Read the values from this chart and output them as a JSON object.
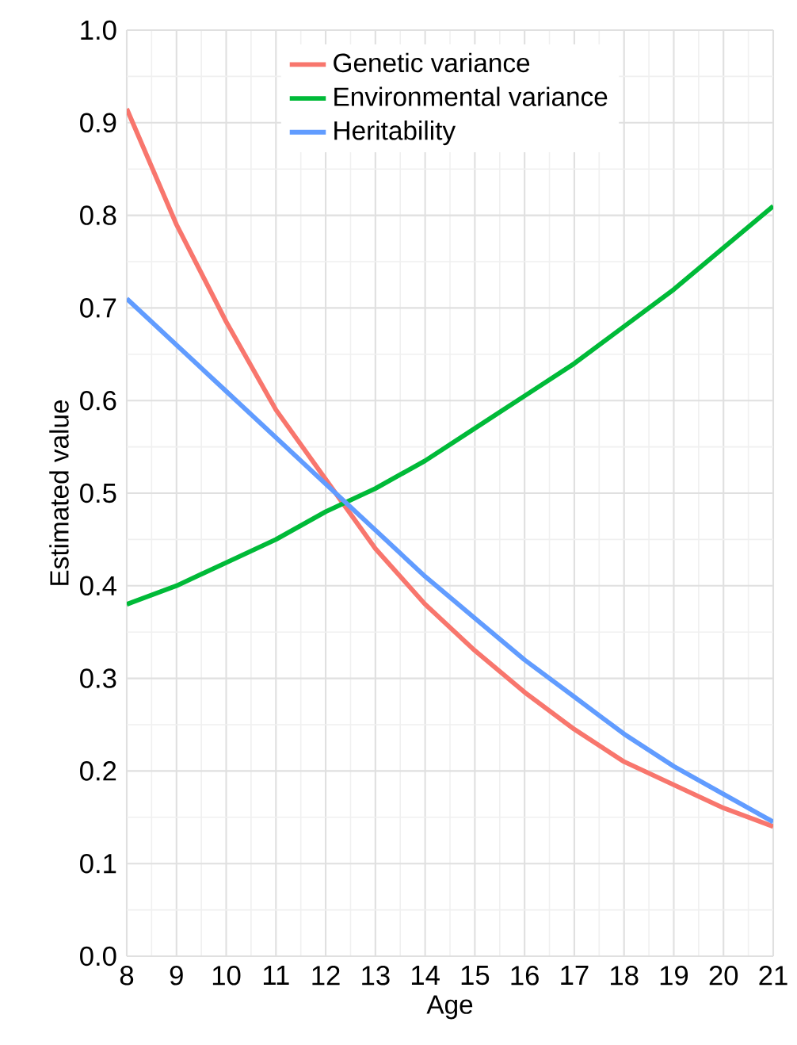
{
  "chart_data": {
    "type": "line",
    "xlabel": "Age",
    "ylabel": "Estimated value",
    "x": [
      8,
      9,
      10,
      11,
      12,
      13,
      14,
      15,
      16,
      17,
      18,
      19,
      20,
      21
    ],
    "series": [
      {
        "name": "Genetic variance",
        "color": "#f8766d",
        "values": [
          0.915,
          0.79,
          0.685,
          0.59,
          0.515,
          0.44,
          0.38,
          0.33,
          0.285,
          0.245,
          0.21,
          0.185,
          0.16,
          0.14
        ]
      },
      {
        "name": "Environmental variance",
        "color": "#00ba38",
        "values": [
          0.38,
          0.4,
          0.425,
          0.45,
          0.48,
          0.505,
          0.535,
          0.57,
          0.605,
          0.64,
          0.68,
          0.72,
          0.765,
          0.81
        ]
      },
      {
        "name": "Heritability",
        "color": "#619cff",
        "values": [
          0.71,
          0.66,
          0.61,
          0.56,
          0.51,
          0.46,
          0.41,
          0.365,
          0.32,
          0.28,
          0.24,
          0.205,
          0.175,
          0.145
        ]
      }
    ],
    "xlim": [
      8,
      21
    ],
    "ylim": [
      0,
      1
    ],
    "xticks": [
      8,
      9,
      10,
      11,
      12,
      13,
      14,
      15,
      16,
      17,
      18,
      19,
      20,
      21
    ],
    "yticks": [
      {
        "value": 0,
        "label": "0.0"
      },
      0.1,
      0.2,
      0.3,
      0.4,
      0.5,
      0.6,
      0.7,
      0.8,
      0.9,
      {
        "value": 1,
        "label": "1.0"
      }
    ],
    "grid": true,
    "legend": "top",
    "marker": "none",
    "line_style": "solid"
  }
}
